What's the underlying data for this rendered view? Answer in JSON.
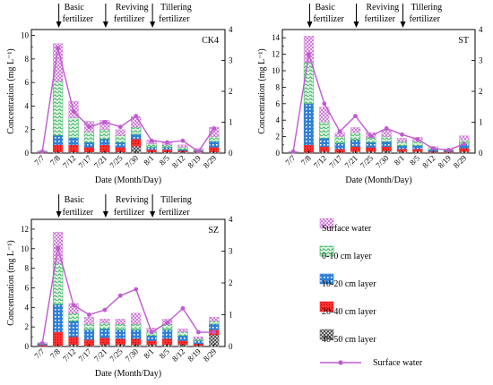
{
  "stages": [
    {
      "top": "Basic",
      "bottom": "fertilizer",
      "date": "7/8"
    },
    {
      "top": "Reviving",
      "bottom": "fertilizer",
      "date": "7/21"
    },
    {
      "top": "Tillering",
      "bottom": "fertilizer",
      "date": "8/1"
    }
  ],
  "axis_labels": {
    "xlabel": "Date (Month/Day)",
    "ylabel": "Concentration (mg L⁻¹)"
  },
  "colors": {
    "surface": "#d98fe0",
    "l0_10": "#33b05a",
    "l10_20": "#2f7fd6",
    "l20_40": "#ff2b2b",
    "l40_50": "#777777",
    "line": "#c05ad0"
  },
  "legend": [
    {
      "key": "surface",
      "label": "Surface water",
      "kind": "bar"
    },
    {
      "key": "l0_10",
      "label": "0-10 cm layer",
      "kind": "bar"
    },
    {
      "key": "l10_20",
      "label": "10-20 cm layer",
      "kind": "bar"
    },
    {
      "key": "l20_40",
      "label": "20-40 cm layer",
      "kind": "bar"
    },
    {
      "key": "l40_50",
      "label": "40-50 cm layer",
      "kind": "bar"
    },
    {
      "key": "line",
      "label": "Surface water",
      "kind": "line"
    }
  ],
  "chart_data": [
    {
      "type": "bar",
      "panel": "CK4",
      "title": "CK4",
      "categories": [
        "7/7",
        "7/8",
        "7/12",
        "7/17",
        "7/21",
        "7/25",
        "7/30",
        "8/1",
        "8/5",
        "8/12",
        "8/19",
        "8/29"
      ],
      "ylim": [
        0,
        10.5
      ],
      "yticks": [
        0,
        2,
        4,
        6,
        8,
        10
      ],
      "y2lim": [
        0,
        4
      ],
      "y2ticks": [
        0,
        1,
        2,
        3,
        4
      ],
      "series": [
        {
          "key": "l40_50",
          "values": [
            0.0,
            0.1,
            0.1,
            0.1,
            0.1,
            0.1,
            0.6,
            0.1,
            0.1,
            0.1,
            0.1,
            0.1
          ]
        },
        {
          "key": "l20_40",
          "values": [
            0.05,
            0.6,
            0.6,
            0.4,
            0.6,
            0.4,
            0.6,
            0.2,
            0.2,
            0.1,
            0.05,
            0.4
          ]
        },
        {
          "key": "l10_20",
          "values": [
            0.05,
            0.8,
            0.6,
            0.4,
            0.5,
            0.4,
            0.4,
            0.2,
            0.2,
            0.1,
            0.05,
            0.5
          ]
        },
        {
          "key": "l0_10",
          "values": [
            0.05,
            4.6,
            1.7,
            0.9,
            0.8,
            0.6,
            0.6,
            0.3,
            0.2,
            0.2,
            0.1,
            0.4
          ]
        },
        {
          "key": "surface",
          "values": [
            0.05,
            3.2,
            1.4,
            0.9,
            0.8,
            0.5,
            0.9,
            0.3,
            0.2,
            0.2,
            0.1,
            0.8
          ]
        }
      ],
      "line": {
        "key": "line",
        "values": [
          0.05,
          3.4,
          1.35,
          0.85,
          1.0,
          0.85,
          1.2,
          0.4,
          0.35,
          0.4,
          0.05,
          0.8
        ]
      }
    },
    {
      "type": "bar",
      "panel": "ST",
      "title": "ST",
      "categories": [
        "7/7",
        "7/8",
        "7/12",
        "7/17",
        "7/21",
        "7/25",
        "7/30",
        "8/1",
        "8/5",
        "8/12",
        "8/19",
        "8/29"
      ],
      "ylim": [
        0,
        15
      ],
      "yticks": [
        0,
        2,
        4,
        6,
        8,
        10,
        12,
        14
      ],
      "y2lim": [
        0,
        4
      ],
      "y2ticks": [
        0,
        1,
        2,
        3,
        4
      ],
      "series": [
        {
          "key": "l40_50",
          "values": [
            0.0,
            0.1,
            0.2,
            0.1,
            0.2,
            0.2,
            0.3,
            0.2,
            0.2,
            0.1,
            0.1,
            0.2
          ]
        },
        {
          "key": "l20_40",
          "values": [
            0.05,
            0.9,
            0.6,
            0.4,
            0.6,
            0.5,
            0.5,
            0.3,
            0.3,
            0.1,
            0.1,
            0.4
          ]
        },
        {
          "key": "l10_20",
          "values": [
            0.05,
            5.0,
            1.0,
            0.7,
            0.8,
            0.6,
            0.6,
            0.4,
            0.4,
            0.2,
            0.1,
            0.5
          ]
        },
        {
          "key": "l0_10",
          "values": [
            0.05,
            5.0,
            2.0,
            0.8,
            0.9,
            0.6,
            0.6,
            0.5,
            0.5,
            0.2,
            0.1,
            0.5
          ]
        },
        {
          "key": "surface",
          "values": [
            0.05,
            3.2,
            1.8,
            0.5,
            0.6,
            0.6,
            0.8,
            0.4,
            0.5,
            0.2,
            0.1,
            0.5
          ]
        }
      ],
      "line": {
        "key": "line",
        "values": [
          0.05,
          3.2,
          1.6,
          0.7,
          1.2,
          0.55,
          0.8,
          0.6,
          0.45,
          0.15,
          0.1,
          0.3
        ]
      }
    },
    {
      "type": "bar",
      "panel": "SZ",
      "title": "SZ",
      "categories": [
        "7/7",
        "7/8",
        "7/12",
        "7/17",
        "7/21",
        "7/25",
        "7/30",
        "8/1",
        "8/5",
        "8/12",
        "8/19",
        "8/29"
      ],
      "ylim": [
        0,
        13
      ],
      "yticks": [
        0,
        2,
        4,
        6,
        8,
        10,
        12
      ],
      "y2lim": [
        0,
        4
      ],
      "y2ticks": [
        0,
        1,
        2,
        3,
        4
      ],
      "series": [
        {
          "key": "l40_50",
          "values": [
            0.05,
            0.1,
            0.2,
            0.1,
            0.2,
            0.2,
            0.2,
            0.2,
            0.2,
            0.2,
            0.1,
            1.2
          ]
        },
        {
          "key": "l20_40",
          "values": [
            0.1,
            1.4,
            0.8,
            0.6,
            0.7,
            0.6,
            0.6,
            0.4,
            0.6,
            0.4,
            0.2,
            0.5
          ]
        },
        {
          "key": "l10_20",
          "values": [
            0.1,
            2.8,
            1.6,
            1.0,
            0.9,
            0.9,
            0.9,
            0.5,
            0.9,
            0.5,
            0.3,
            0.6
          ]
        },
        {
          "key": "l0_10",
          "values": [
            0.1,
            4.2,
            0.8,
            0.6,
            0.6,
            0.6,
            0.6,
            0.4,
            0.6,
            0.4,
            0.2,
            0.3
          ]
        },
        {
          "key": "surface",
          "values": [
            0.05,
            3.2,
            1.0,
            0.7,
            0.4,
            0.5,
            1.1,
            0.4,
            0.5,
            0.3,
            0.2,
            0.4
          ]
        }
      ],
      "line": {
        "key": "line",
        "values": [
          0.1,
          3.1,
          1.3,
          1.0,
          1.15,
          1.6,
          1.8,
          0.45,
          0.75,
          1.2,
          0.45,
          0.45
        ]
      }
    }
  ]
}
